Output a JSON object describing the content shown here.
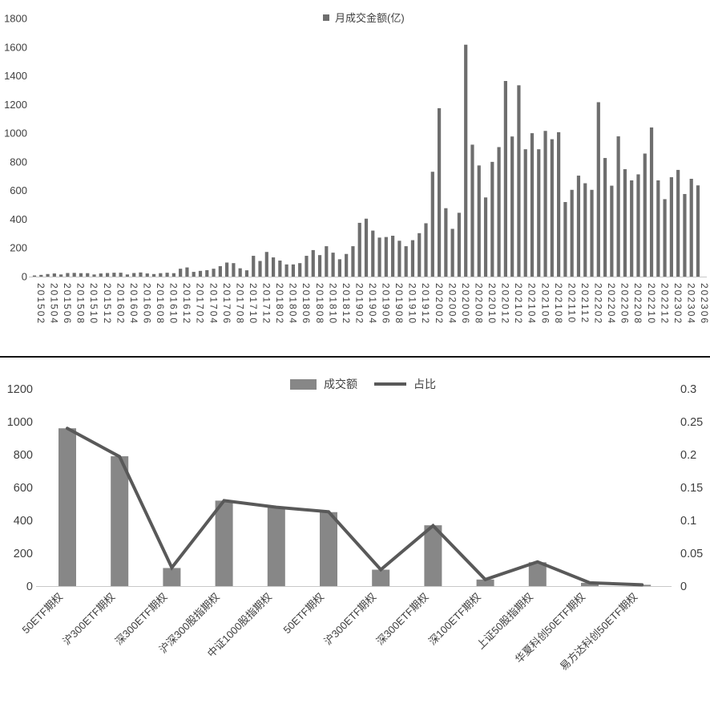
{
  "page": {
    "background": "#ffffff",
    "divider_color": "#141414"
  },
  "colors": {
    "top_bar": "#6e6e6e",
    "bottom_bar": "#878787",
    "line": "#595959",
    "axis_text": "#3f3f3f",
    "axis_line": "#c8c8c8"
  },
  "chart_data": [
    {
      "type": "bar",
      "title": "",
      "legend_label": "月成交金额(亿)",
      "legend_position": "top-center",
      "grid": false,
      "ylim": [
        0,
        1800
      ],
      "ytick_step": 200,
      "xtick_every": 2,
      "categories": [
        "201502",
        "201503",
        "201504",
        "201505",
        "201506",
        "201507",
        "201508",
        "201509",
        "201510",
        "201511",
        "201512",
        "201601",
        "201602",
        "201603",
        "201604",
        "201605",
        "201606",
        "201607",
        "201608",
        "201609",
        "201610",
        "201611",
        "201612",
        "201701",
        "201702",
        "201703",
        "201704",
        "201705",
        "201706",
        "201707",
        "201708",
        "201709",
        "201710",
        "201711",
        "201712",
        "201801",
        "201802",
        "201803",
        "201804",
        "201805",
        "201806",
        "201807",
        "201808",
        "201809",
        "201810",
        "201811",
        "201812",
        "201901",
        "201902",
        "201903",
        "201904",
        "201905",
        "201906",
        "201907",
        "201908",
        "201909",
        "201910",
        "201911",
        "201912",
        "202001",
        "202002",
        "202003",
        "202004",
        "202005",
        "202006",
        "202007",
        "202008",
        "202009",
        "202010",
        "202011",
        "202012",
        "202101",
        "202102",
        "202103",
        "202104",
        "202105",
        "202106",
        "202107",
        "202108",
        "202109",
        "202110",
        "202111",
        "202112",
        "202201",
        "202202",
        "202203",
        "202204",
        "202205",
        "202206",
        "202207",
        "202208",
        "202209",
        "202210",
        "202211",
        "202212",
        "202301",
        "202302",
        "202303",
        "202304",
        "202305",
        "202306"
      ],
      "values": [
        8,
        12,
        18,
        22,
        15,
        25,
        26,
        24,
        24,
        15,
        22,
        25,
        27,
        27,
        15,
        25,
        29,
        22,
        18,
        24,
        27,
        24,
        55,
        64,
        33,
        40,
        45,
        55,
        73,
        98,
        94,
        58,
        44,
        145,
        109,
        172,
        134,
        112,
        85,
        85,
        94,
        145,
        185,
        150,
        212,
        167,
        121,
        158,
        212,
        375,
        404,
        321,
        272,
        276,
        285,
        250,
        212,
        254,
        303,
        372,
        731,
        1174,
        477,
        333,
        445,
        1617,
        920,
        775,
        552,
        800,
        903,
        1364,
        977,
        1334,
        888,
        1000,
        888,
        1016,
        958,
        1007,
        520,
        605,
        704,
        651,
        605,
        1216,
        827,
        634,
        978,
        749,
        671,
        713,
        858,
        1040,
        671,
        540,
        693,
        744,
        576,
        682,
        636
      ]
    },
    {
      "type": "bar+line",
      "title": "",
      "legend_position": "top-center",
      "grid": false,
      "ylim_left": [
        0,
        1200
      ],
      "ytick_step_left": 200,
      "ylim_right": [
        0,
        0.3
      ],
      "ytick_step_right": 0.05,
      "right_tick_labels": [
        "0",
        "0.05",
        "0.1",
        "0.15",
        "0.2",
        "0.25",
        "0.3"
      ],
      "categories": [
        "50ETF期权",
        "沪300ETF期权",
        "深300ETF期权",
        "沪深300股指期权",
        "中证1000股指期权",
        "50ETF期权",
        "沪300ETF期权",
        "深300ETF期权",
        "深100ETF期权",
        "上证50股指期权",
        "华夏科创50ETF期权",
        "易方达科创50ETF期权"
      ],
      "series": [
        {
          "name": "成交额",
          "type": "bar",
          "axis": "left",
          "color": "#878787",
          "values": [
            960,
            790,
            110,
            520,
            480,
            450,
            100,
            370,
            40,
            145,
            20,
            8
          ]
        },
        {
          "name": "占比",
          "type": "line",
          "axis": "right",
          "color": "#595959",
          "values": [
            0.24,
            0.197,
            0.028,
            0.13,
            0.12,
            0.113,
            0.025,
            0.092,
            0.01,
            0.037,
            0.005,
            0.002
          ]
        }
      ]
    }
  ]
}
